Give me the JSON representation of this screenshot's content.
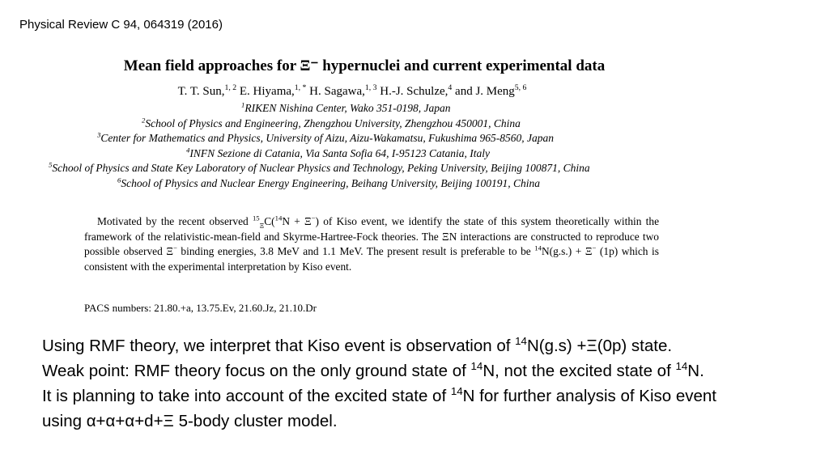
{
  "citation": "Physical Review C 94, 064319 (2016)",
  "paper": {
    "title": "Mean field approaches for Ξ⁻ hypernuclei and current experimental data",
    "authors": [
      {
        "name": "T. T. Sun,",
        "sup": "1, 2"
      },
      {
        "name": "E. Hiyama,",
        "sup": "1, *"
      },
      {
        "name": "H. Sagawa,",
        "sup": "1, 3"
      },
      {
        "name": "H.-J. Schulze,",
        "sup": "4"
      },
      {
        "name": "and J. Meng",
        "sup": "5, 6"
      }
    ],
    "affiliations": [
      {
        "num": "1",
        "text": "RIKEN Nishina Center, Wako 351-0198, Japan"
      },
      {
        "num": "2",
        "text": "School of Physics and Engineering, Zhengzhou University, Zhengzhou 450001, China"
      },
      {
        "num": "3",
        "text": "Center for Mathematics and Physics, University of Aizu, Aizu-Wakamatsu, Fukushima 965-8560, Japan"
      },
      {
        "num": "4",
        "text": "INFN Sezione di Catania, Via Santa Sofia 64, I-95123 Catania, Italy"
      },
      {
        "num": "5",
        "text": "School of Physics and State Key Laboratory of Nuclear Physics and Technology, Peking University, Beijing 100871, China"
      },
      {
        "num": "6",
        "text": "School of Physics and Nuclear Energy Engineering, Beihang University, Beijing 100191, China"
      }
    ],
    "abstract": {
      "a1": "Motivated by the recent observed ",
      "iso_sup": "15",
      "iso_sub": "Ξ",
      "a2": "C(",
      "a2_sup": "14",
      "a3": "N + Ξ",
      "a3_sup": "−",
      "a4": ") of Kiso event, we identify the state of this system theoretically within the framework of the relativistic-mean-field and Skyrme-Hartree-Fock theories. The ΞN interactions are constructed to reproduce two possible observed Ξ",
      "a4_sup": "−",
      "a5": " binding energies, 3.8 MeV and 1.1 MeV. The present result is preferable to be ",
      "a5_sup": "14",
      "a6": "N(g.s.) + Ξ",
      "a6_sup": "−",
      "a7": " (1p) which is consistent with the experimental interpretation by Kiso event."
    },
    "pacs": "PACS numbers:  21.80.+a, 13.75.Ev, 21.60.Jz, 21.10.Dr"
  },
  "notes": {
    "l1a": "Using RMF theory, we interpret that Kiso event is observation of  ",
    "l1_sup": "14",
    "l1b": "N(g.s) +Ξ(0p) state.",
    "l2a": "Weak point: RMF theory focus on the only ground state of ",
    "l2_sup1": "14",
    "l2b": "N, not the excited state of ",
    "l2_sup2": "14",
    "l2c": "N.",
    "l3a": "It is planning to take into account of the excited state of ",
    "l3_sup": "14",
    "l3b": "N for further analysis of Kiso event",
    "l4": "using α+α+α+d+Ξ 5-body cluster model."
  }
}
